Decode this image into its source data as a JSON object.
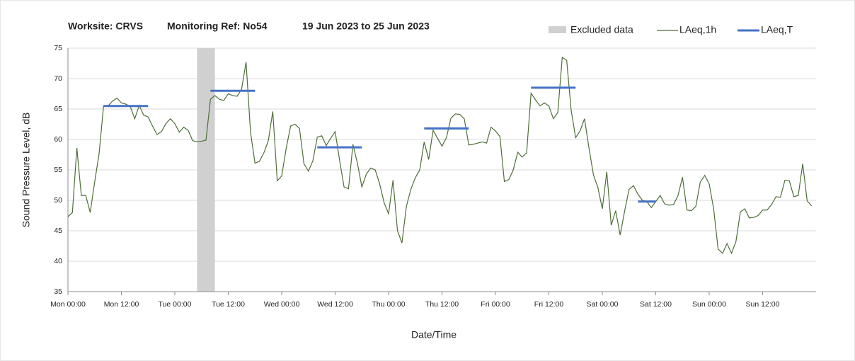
{
  "chart_data": {
    "type": "line",
    "title_parts": [
      "Worksite: CRVS",
      "Monitoring Ref: No54",
      "19 Jun 2023 to 25 Jun 2023"
    ],
    "xlabel": "Date/Time",
    "ylabel": "Sound Pressure Level, dB",
    "xlim": [
      0,
      168
    ],
    "xticks": [
      {
        "value": 0,
        "label": "Mon 00:00"
      },
      {
        "value": 12,
        "label": "Mon 12:00"
      },
      {
        "value": 24,
        "label": "Tue 00:00"
      },
      {
        "value": 36,
        "label": "Tue 12:00"
      },
      {
        "value": 48,
        "label": "Wed 00:00"
      },
      {
        "value": 60,
        "label": "Wed 12:00"
      },
      {
        "value": 72,
        "label": "Thu 00:00"
      },
      {
        "value": 84,
        "label": "Thu 12:00"
      },
      {
        "value": 96,
        "label": "Fri 00:00"
      },
      {
        "value": 108,
        "label": "Fri 12:00"
      },
      {
        "value": 120,
        "label": "Sat 00:00"
      },
      {
        "value": 132,
        "label": "Sat 12:00"
      },
      {
        "value": 144,
        "label": "Sun 00:00"
      },
      {
        "value": 156,
        "label": "Sun 12:00"
      }
    ],
    "ylim": [
      35,
      75
    ],
    "yticks": [
      35,
      40,
      45,
      50,
      55,
      60,
      65,
      70,
      75
    ],
    "grid": true,
    "excluded": {
      "name": "Excluded data",
      "color": "#d0d0d0",
      "x": [
        29,
        33
      ]
    },
    "x": [
      0,
      1,
      2,
      3,
      4,
      5,
      6,
      7,
      8,
      9,
      10,
      11,
      12,
      13,
      14,
      15,
      16,
      17,
      18,
      19,
      20,
      21,
      22,
      23,
      24,
      25,
      26,
      27,
      28,
      29,
      30,
      31,
      32,
      33,
      34,
      35,
      36,
      37,
      38,
      39,
      40,
      41,
      42,
      43,
      44,
      45,
      46,
      47,
      48,
      49,
      50,
      51,
      52,
      53,
      54,
      55,
      56,
      57,
      58,
      59,
      60,
      61,
      62,
      63,
      64,
      65,
      66,
      67,
      68,
      69,
      70,
      71,
      72,
      73,
      74,
      75,
      76,
      77,
      78,
      79,
      80,
      81,
      82,
      83,
      84,
      85,
      86,
      87,
      88,
      89,
      90,
      91,
      92,
      93,
      94,
      95,
      96,
      97,
      98,
      99,
      100,
      101,
      102,
      103,
      104,
      105,
      106,
      107,
      108,
      109,
      110,
      111,
      112,
      113,
      114,
      115,
      116,
      117,
      118,
      119,
      120,
      121,
      122,
      123,
      124,
      125,
      126,
      127,
      128,
      129,
      130,
      131,
      132,
      133,
      134,
      135,
      136,
      137,
      138,
      139,
      140,
      141,
      142,
      143,
      144,
      145,
      146,
      147,
      148,
      149,
      150,
      151,
      152,
      153,
      154,
      155,
      156,
      157,
      158,
      159,
      160,
      161,
      162,
      163,
      164,
      165,
      166,
      167
    ],
    "series": [
      {
        "name": "LAeq,1h",
        "color": "#4f6e38",
        "values": [
          47.3,
          48,
          58.6,
          50.8,
          50.8,
          48,
          53,
          57.7,
          65.5,
          65.5,
          66.3,
          66.8,
          66,
          65.8,
          65.4,
          63.4,
          65.6,
          64,
          63.7,
          62.2,
          60.8,
          61.3,
          62.6,
          63.4,
          62.6,
          61.2,
          62,
          61.5,
          59.8,
          59.6,
          59.7,
          59.9,
          66.6,
          67.2,
          66.6,
          66.4,
          67.5,
          67.2,
          67.1,
          68.3,
          72.7,
          61.2,
          56.1,
          56.4,
          57.8,
          59.8,
          64.6,
          53.2,
          54,
          58.5,
          62.2,
          62.5,
          61.8,
          56,
          54.8,
          56.5,
          60.4,
          60.6,
          59,
          60.2,
          61.3,
          56.6,
          52.2,
          51.9,
          59.2,
          56.1,
          52.2,
          54.3,
          55.3,
          55,
          52.7,
          49.6,
          47.8,
          53.3,
          45,
          43,
          49,
          51.8,
          53.7,
          55,
          59.6,
          56.7,
          61.5,
          60.2,
          58.9,
          60.3,
          63.5,
          64.2,
          64.1,
          63.4,
          59.1,
          59.2,
          59.4,
          59.6,
          59.4,
          62,
          61.4,
          60.5,
          53.1,
          53.4,
          55,
          57.9,
          57.1,
          57.8,
          67.6,
          66.5,
          65.5,
          66,
          65.5,
          63.4,
          64.4,
          73.5,
          73,
          64.8,
          60.3,
          61.4,
          63.4,
          58.6,
          54.2,
          52.1,
          48.6,
          54.7,
          45.9,
          48.3,
          44.3,
          48.2,
          51.8,
          52.4,
          51,
          50,
          49.8,
          48.8,
          49.8,
          50.8,
          49.4,
          49.2,
          49.3,
          50.8,
          53.8,
          48.4,
          48.3,
          49,
          53,
          54.1,
          52.7,
          48.6,
          42,
          41.3,
          42.9,
          41.3,
          43.2,
          48.1,
          48.6,
          47.1,
          47.2,
          47.5,
          48.4,
          48.4,
          49.3,
          50.6,
          50.5,
          53.3,
          53.2,
          50.6,
          50.8,
          56,
          49.9,
          49.1
        ]
      }
    ],
    "segments": {
      "name": "LAeq,T",
      "color": "#4472c4",
      "items": [
        {
          "x": [
            8,
            18
          ],
          "value": 65.5
        },
        {
          "x": [
            32,
            42
          ],
          "value": 68
        },
        {
          "x": [
            56,
            66
          ],
          "value": 58.7
        },
        {
          "x": [
            80,
            90
          ],
          "value": 61.8
        },
        {
          "x": [
            104,
            114
          ],
          "value": 68.5
        },
        {
          "x": [
            128,
            132
          ],
          "value": 49.8
        }
      ]
    }
  }
}
